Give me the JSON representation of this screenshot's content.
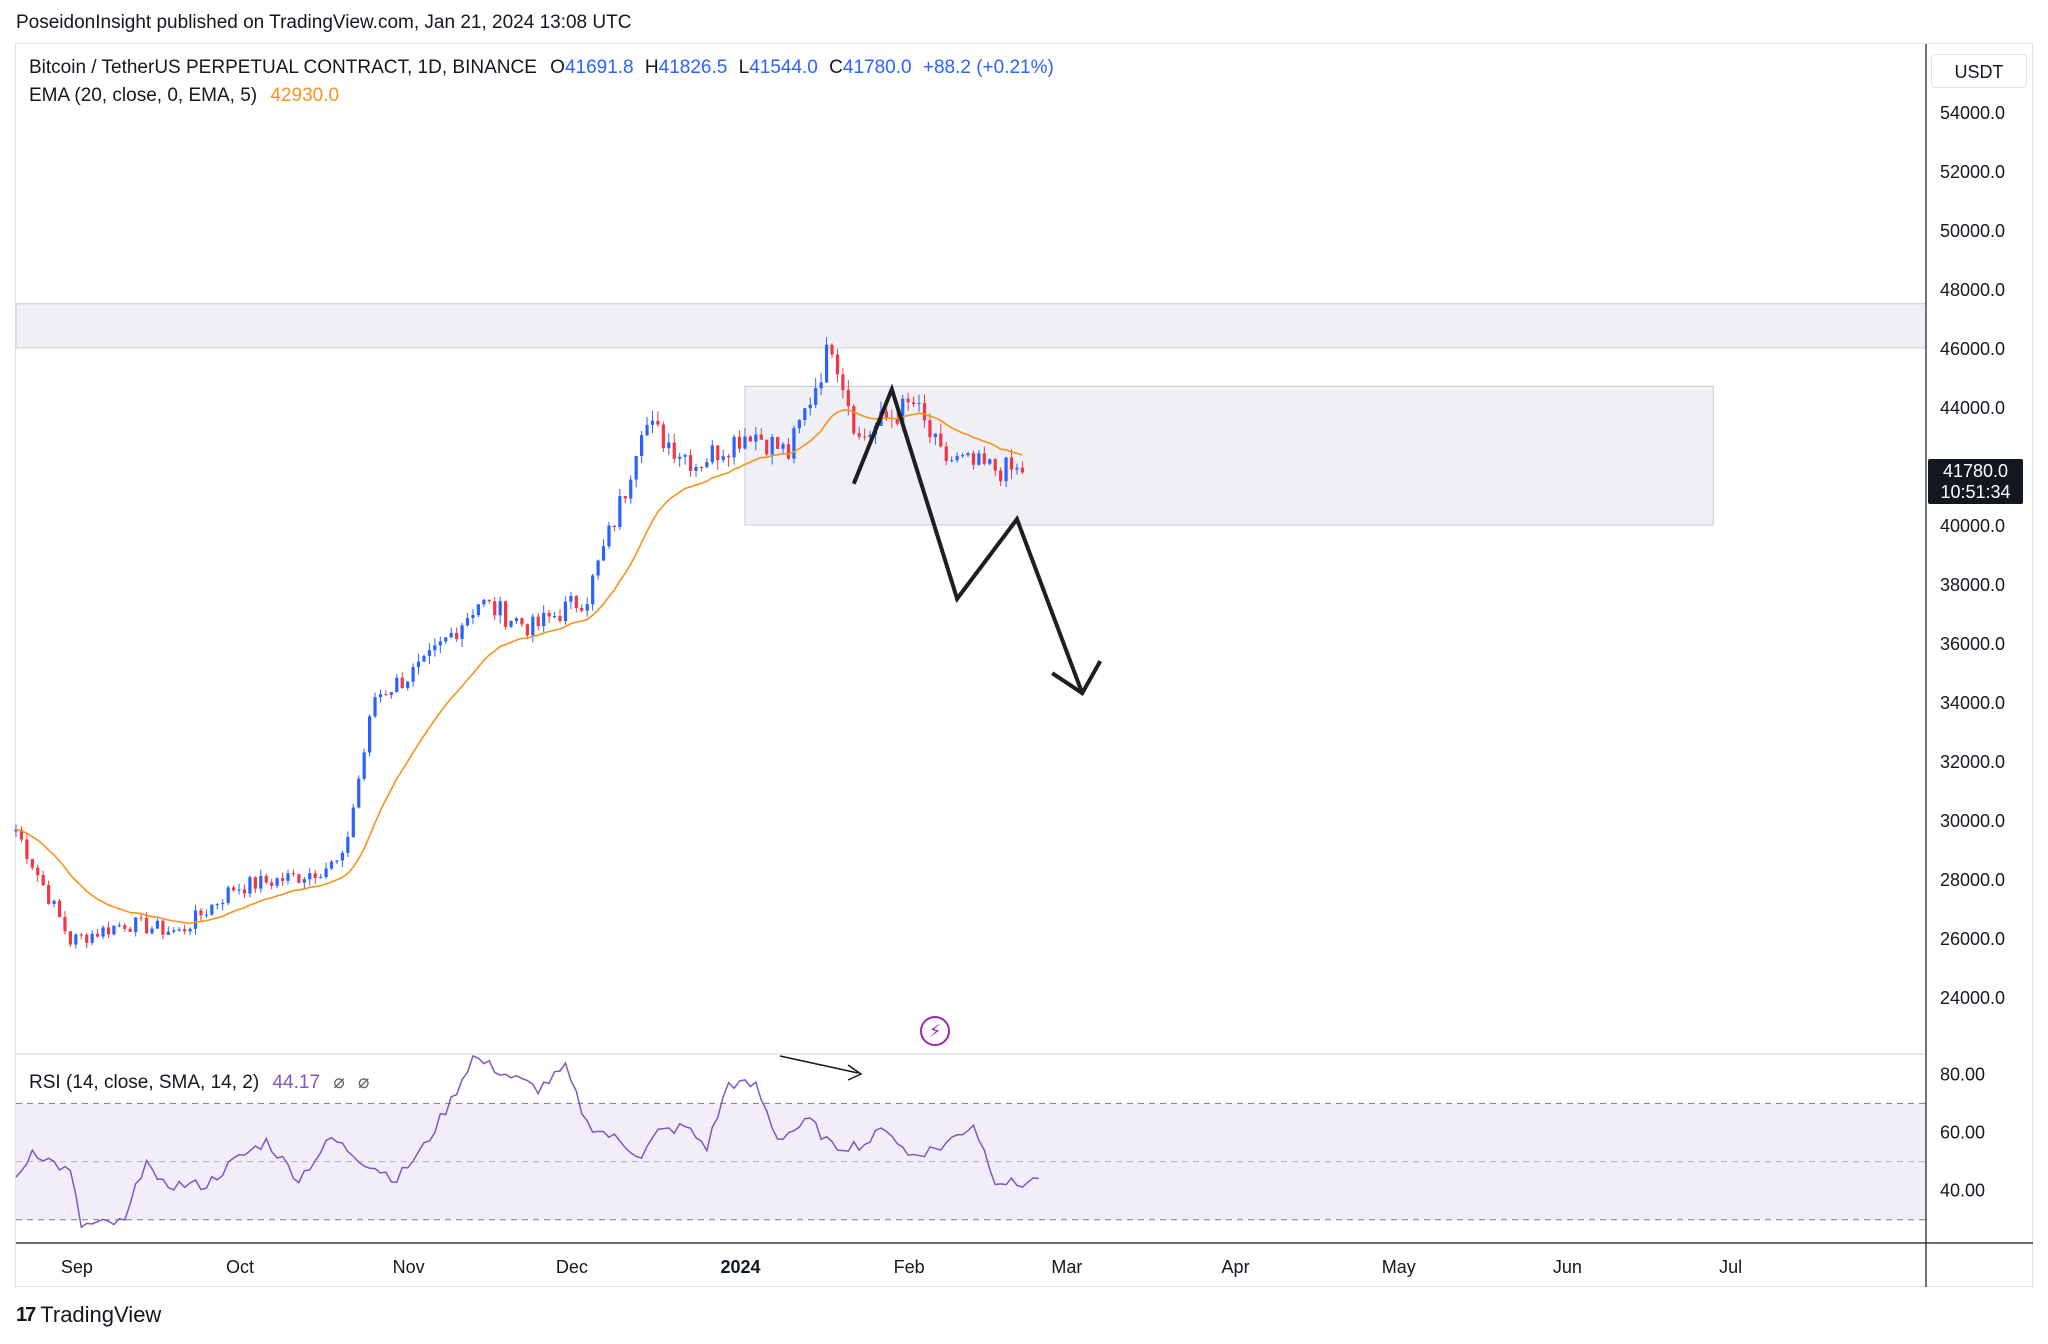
{
  "header": {
    "published": "PoseidonInsight published on TradingView.com, Jan 21, 2024 13:08 UTC"
  },
  "legend": {
    "symbol": "Bitcoin / TetherUS PERPETUAL CONTRACT, 1D, BINANCE",
    "o_label": "O",
    "o_value": "41691.8",
    "h_label": "H",
    "h_value": "41826.5",
    "l_label": "L",
    "l_value": "41544.0",
    "c_label": "C",
    "c_value": "41780.0",
    "change": "+88.2 (+0.21%)",
    "ema_label": "EMA (20, close, 0, EMA, 5)",
    "ema_value": "42930.0",
    "rsi_label": "RSI (14, close, SMA, 14, 2)",
    "rsi_value": "44.17",
    "glyph": "⌀"
  },
  "axis": {
    "currency": "USDT",
    "last_price": "41780.0",
    "countdown": "10:51:34"
  },
  "colors": {
    "up": "#2962ff",
    "down": "#f23645",
    "ema": "#f7931a",
    "rsi": "#7e57c2",
    "zone": "#eef0f6"
  },
  "icons": {
    "lightning": "lightning-icon",
    "brand": "tradingview-logo"
  },
  "footer": {
    "brand": "TradingView"
  },
  "chart_data": {
    "type": "candlestick",
    "interval": "1D",
    "date_ticks": [
      "Sep",
      "Oct",
      "Nov",
      "Dec",
      "2024",
      "Feb",
      "Mar",
      "Apr",
      "May",
      "Jun",
      "Jul"
    ],
    "price_ticks": [
      54000,
      52000,
      50000,
      48000,
      46000,
      44000,
      42000,
      40000,
      38000,
      36000,
      34000,
      32000,
      30000,
      28000,
      26000,
      24000
    ],
    "price_tick_labels": [
      "54000.0",
      "52000.0",
      "50000.0",
      "48000.0",
      "46000.0",
      "44000.0",
      "",
      "40000.0",
      "38000.0",
      "36000.0",
      "34000.0",
      "32000.0",
      "30000.0",
      "28000.0",
      "26000.0",
      "24000.0"
    ],
    "price_range": [
      22000,
      55500
    ],
    "anchor_days": [
      [
        1,
        29300
      ],
      [
        10,
        25900
      ],
      [
        20,
        26500
      ],
      [
        30,
        26200
      ],
      [
        40,
        27700
      ],
      [
        52,
        28100
      ],
      [
        60,
        28600
      ],
      [
        66,
        34200
      ],
      [
        75,
        35200
      ],
      [
        85,
        37400
      ],
      [
        95,
        36500
      ],
      [
        105,
        37600
      ],
      [
        112,
        41200
      ],
      [
        115,
        43500
      ],
      [
        125,
        42100
      ],
      [
        135,
        43200
      ],
      [
        142,
        42400
      ],
      [
        150,
        46200
      ],
      [
        155,
        42900
      ],
      [
        160,
        43600
      ],
      [
        165,
        44100
      ],
      [
        170,
        42300
      ],
      [
        176,
        42000
      ],
      [
        185,
        41780
      ]
    ],
    "ohlc_note": "Daily candles from late Aug 2023 to Jan 21 2024; interpolated from the visible price path.",
    "ema": {
      "period": 20,
      "last": 42930.0
    },
    "zones": [
      {
        "from_day": 0,
        "to_day": "end",
        "low": 46000,
        "high": 47500
      },
      {
        "from_day": 134,
        "to_day": 312,
        "low": 40000,
        "high": 44700
      }
    ],
    "projection_path": [
      [
        "2024-01-22",
        41400
      ],
      [
        "2024-01-29",
        44600
      ],
      [
        "2024-02-10",
        37500
      ],
      [
        "2024-02-21",
        40200
      ],
      [
        "2024-03-04",
        34300
      ]
    ],
    "rsi": {
      "levels": [
        80,
        60,
        40
      ],
      "level_labels": [
        "80.00",
        "60.00",
        "40.00"
      ],
      "bands": [
        70,
        50,
        30
      ],
      "range": [
        22,
        87
      ],
      "anchors": [
        [
          0,
          43
        ],
        [
          3,
          54
        ],
        [
          10,
          46
        ],
        [
          12,
          28
        ],
        [
          20,
          29
        ],
        [
          24,
          52
        ],
        [
          26,
          42
        ],
        [
          35,
          42
        ],
        [
          40,
          50
        ],
        [
          46,
          57
        ],
        [
          52,
          44
        ],
        [
          58,
          58
        ],
        [
          64,
          50
        ],
        [
          70,
          44
        ],
        [
          75,
          55
        ],
        [
          80,
          71
        ],
        [
          84,
          86
        ],
        [
          90,
          80
        ],
        [
          96,
          75
        ],
        [
          101,
          82
        ],
        [
          105,
          63
        ],
        [
          110,
          58
        ],
        [
          115,
          52
        ],
        [
          118,
          60
        ],
        [
          123,
          62
        ],
        [
          127,
          55
        ],
        [
          131,
          77
        ],
        [
          136,
          76
        ],
        [
          140,
          58
        ],
        [
          146,
          64
        ],
        [
          150,
          55
        ],
        [
          156,
          56
        ],
        [
          160,
          62
        ],
        [
          164,
          52
        ],
        [
          170,
          55
        ],
        [
          176,
          63
        ],
        [
          180,
          44
        ],
        [
          184,
          42
        ],
        [
          188,
          44
        ]
      ],
      "last": 44.17
    }
  }
}
